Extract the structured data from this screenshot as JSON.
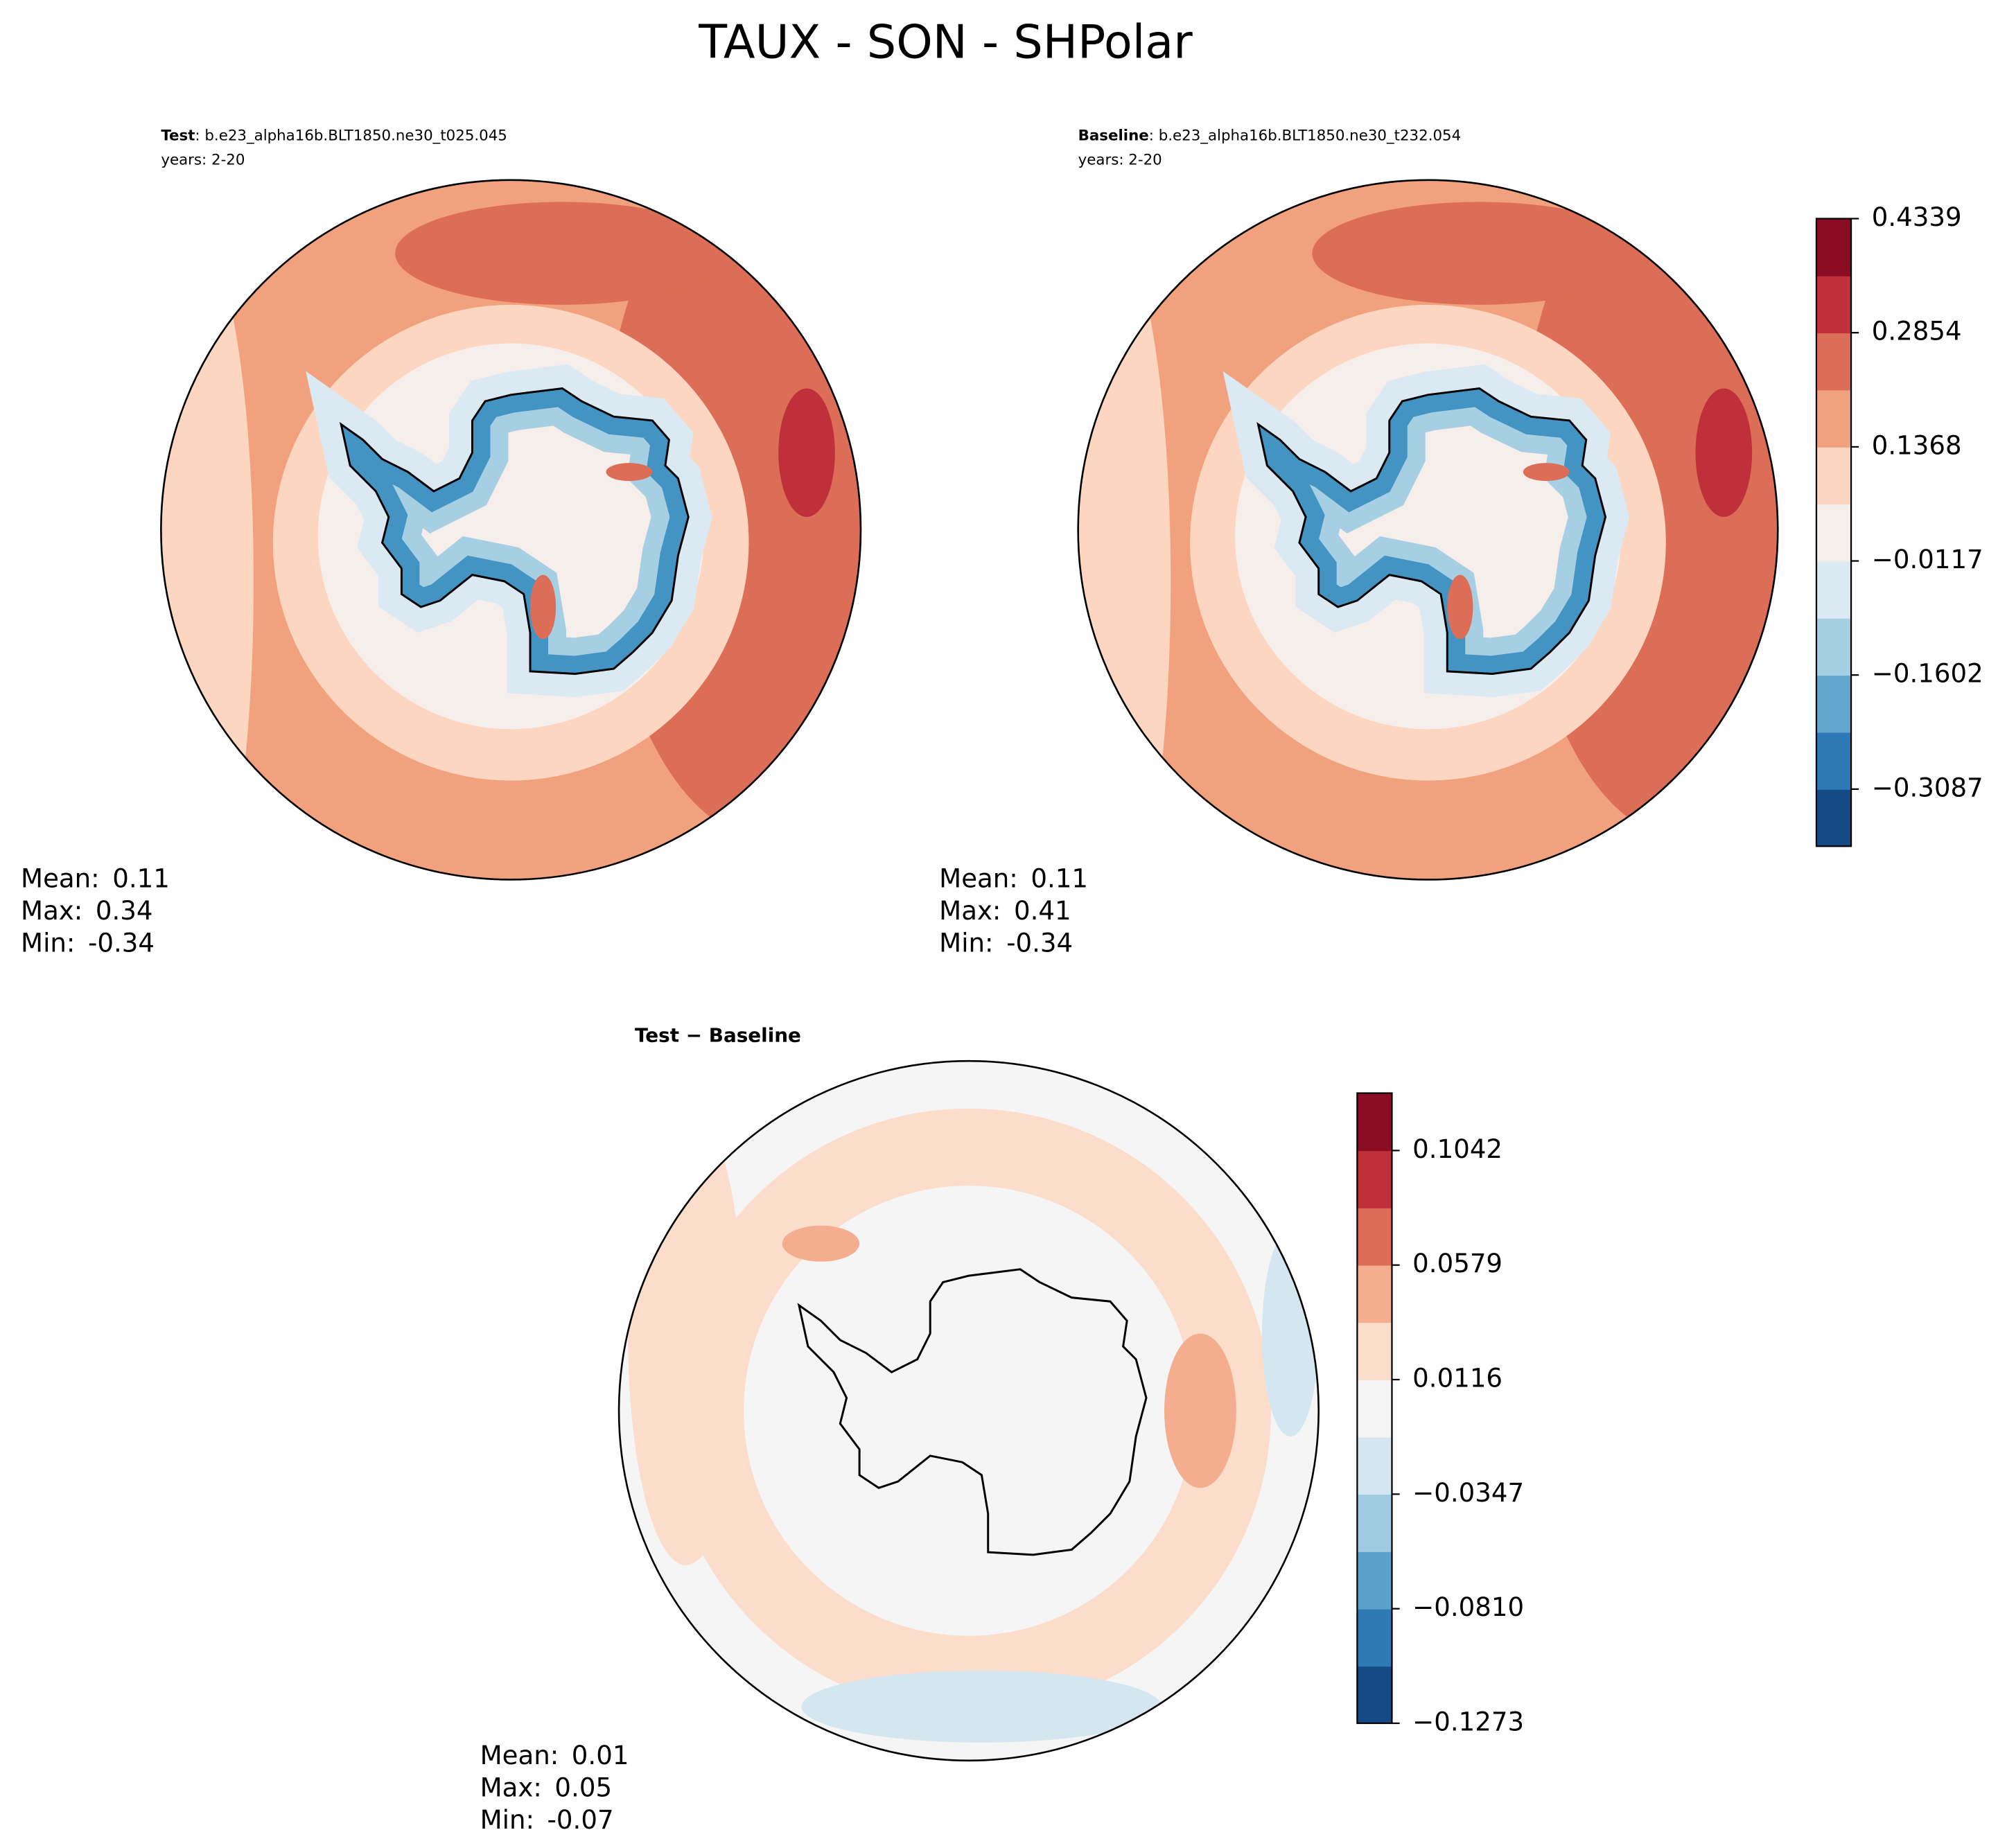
{
  "title": "TAUX - SON - SHPolar",
  "panels": [
    {
      "label": "Test",
      "case": ": b.e23_alpha16b.BLT1850.ne30_t025.045",
      "years": "years: 2-20",
      "stats": [
        {
          "label": "Mean:",
          "value": 0.11
        },
        {
          "label": "Max:",
          "value": 0.34
        },
        {
          "label": "Min:",
          "value": -0.34
        }
      ]
    },
    {
      "label": "Baseline",
      "case": ": b.e23_alpha16b.BLT1850.ne30_t232.054",
      "years": "years: 2-20",
      "stats": [
        {
          "label": "Mean:",
          "value": 0.11
        },
        {
          "label": "Max:",
          "value": 0.41
        },
        {
          "label": "Min:",
          "value": -0.34
        }
      ]
    },
    {
      "label": "Test − Baseline",
      "stats": [
        {
          "label": "Mean:",
          "value": 0.01
        },
        {
          "label": "Max:",
          "value": 0.05
        },
        {
          "label": "Min:",
          "value": -0.07
        }
      ]
    }
  ],
  "colorbars": [
    {
      "lim": [
        -0.383,
        0.4339
      ],
      "ticks": [
        {
          "value": 0.4339,
          "label": "0.4339"
        },
        {
          "value": 0.2854,
          "label": "0.2854"
        },
        {
          "value": 0.1368,
          "label": "0.1368"
        },
        {
          "value": -0.0117,
          "label": "−0.0117"
        },
        {
          "value": -0.1602,
          "label": "−0.1602"
        },
        {
          "value": -0.3087,
          "label": "−0.3087"
        }
      ],
      "colors": [
        "#144b87",
        "#2f79b5",
        "#64a7ce",
        "#a7cfe4",
        "#dbe9f2",
        "#f6eeea",
        "#fcd6c1",
        "#f2a17f",
        "#dc6e57",
        "#c0303a",
        "#8a0c25"
      ]
    },
    {
      "lim": [
        -0.1273,
        0.1274
      ],
      "ticks": [
        {
          "value": 0.1042,
          "label": "0.1042"
        },
        {
          "value": 0.0579,
          "label": "0.0579"
        },
        {
          "value": 0.0116,
          "label": "0.0116"
        },
        {
          "value": -0.0347,
          "label": "−0.0347"
        },
        {
          "value": -0.081,
          "label": "−0.0810"
        },
        {
          "value": -0.1273,
          "label": "−0.1273"
        }
      ],
      "colors": [
        "#144b87",
        "#2f79b5",
        "#5aa2cc",
        "#9fcbe1",
        "#d4e6f0",
        "#f5f5f5",
        "#fcdccb",
        "#f4ae8f",
        "#dc6e57",
        "#c0303a",
        "#8a0c25"
      ]
    }
  ]
}
